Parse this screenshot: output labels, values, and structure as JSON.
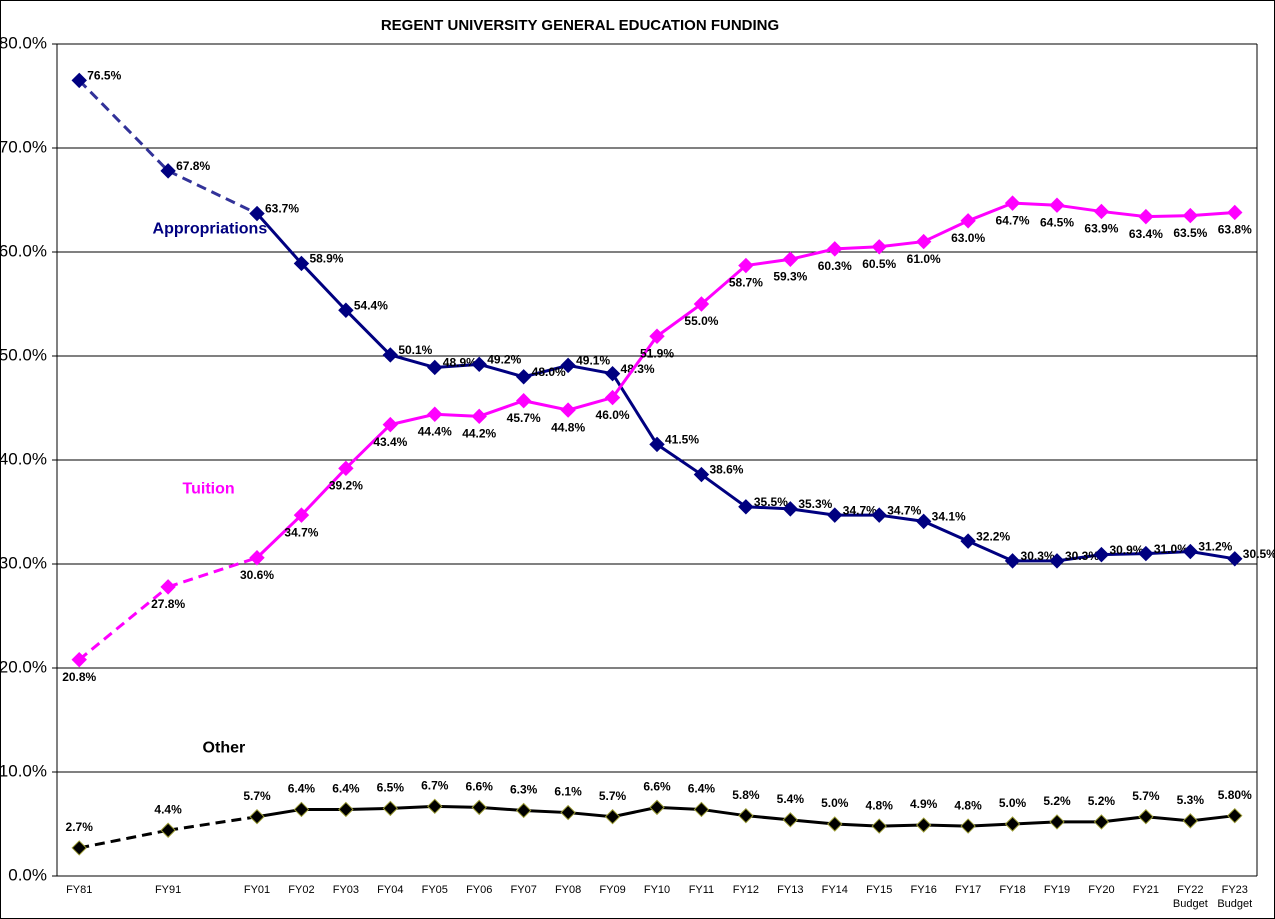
{
  "chart_data": {
    "type": "line",
    "title": "REGENT UNIVERSITY GENERAL EDUCATION FUNDING",
    "categories": [
      "FY81",
      null,
      "FY91",
      null,
      "FY01",
      "FY02",
      "FY03",
      "FY04",
      "FY05",
      "FY06",
      "FY07",
      "FY08",
      "FY09",
      "FY10",
      "FY11",
      "FY12",
      "FY13",
      "FY14",
      "FY15",
      "FY16",
      "FY17",
      "FY18",
      "FY19",
      "FY20",
      "FY21",
      "FY22",
      "FY23"
    ],
    "x_sublabels": [
      null,
      null,
      null,
      null,
      null,
      null,
      null,
      null,
      null,
      null,
      null,
      null,
      null,
      null,
      null,
      null,
      null,
      null,
      null,
      null,
      null,
      null,
      null,
      null,
      null,
      "Budget",
      "Budget"
    ],
    "ylim": [
      0,
      80
    ],
    "yticks": [
      {
        "value": 0,
        "label": "0.0%"
      },
      {
        "value": 10,
        "label": "10.0%"
      },
      {
        "value": 20,
        "label": "20.0%"
      },
      {
        "value": 30,
        "label": "30.0%"
      },
      {
        "value": 40,
        "label": "40.0%"
      },
      {
        "value": 50,
        "label": "50.0%"
      },
      {
        "value": 60,
        "label": "60.0%"
      },
      {
        "value": 70,
        "label": "70.0%"
      },
      {
        "value": 80,
        "label": "80.0%"
      }
    ],
    "grid": true,
    "series": [
      {
        "name": "Appropriations",
        "color": "#000080",
        "values": [
          76.5,
          null,
          67.8,
          null,
          63.7,
          58.9,
          54.4,
          50.1,
          48.9,
          49.2,
          48.0,
          49.1,
          48.3,
          41.5,
          38.6,
          35.5,
          35.3,
          34.7,
          34.7,
          34.1,
          32.2,
          30.3,
          30.3,
          30.9,
          31.0,
          31.2,
          30.5
        ],
        "value_labels": [
          "76.5%",
          null,
          "67.8%",
          null,
          "63.7%",
          "58.9%",
          "54.4%",
          "50.1%",
          "48.9%",
          "49.2%",
          "48.0%",
          "49.1%",
          "48.3%",
          "41.5%",
          "38.6%",
          "35.5%",
          "35.3%",
          "34.7%",
          "34.7%",
          "34.1%",
          "32.2%",
          "30.3%",
          "30.3%",
          "30.9%",
          "31.0%",
          "31.2%",
          "30.5%"
        ]
      },
      {
        "name": "Tuition",
        "color": "#ff00ff",
        "values": [
          20.8,
          null,
          27.8,
          null,
          30.6,
          34.7,
          39.2,
          43.4,
          44.4,
          44.2,
          45.7,
          44.8,
          46.0,
          51.9,
          55.0,
          58.7,
          59.3,
          60.3,
          60.5,
          61.0,
          63.0,
          64.7,
          64.5,
          63.9,
          63.4,
          63.5,
          63.8
        ],
        "value_labels": [
          "20.8%",
          null,
          "27.8%",
          null,
          "30.6%",
          "34.7%",
          "39.2%",
          "43.4%",
          "44.4%",
          "44.2%",
          "45.7%",
          "44.8%",
          "46.0%",
          "51.9%",
          "55.0%",
          "58.7%",
          "59.3%",
          "60.3%",
          "60.5%",
          "61.0%",
          "63.0%",
          "64.7%",
          "64.5%",
          "63.9%",
          "63.4%",
          "63.5%",
          "63.8%"
        ]
      },
      {
        "name": "Other",
        "color": "#000000",
        "values": [
          2.7,
          null,
          4.4,
          null,
          5.7,
          6.4,
          6.4,
          6.5,
          6.7,
          6.6,
          6.3,
          6.1,
          5.7,
          6.6,
          6.4,
          5.8,
          5.4,
          5.0,
          4.8,
          4.9,
          4.8,
          5.0,
          5.2,
          5.2,
          5.7,
          5.3,
          5.8
        ],
        "value_labels": [
          "2.7%",
          null,
          "4.4%",
          null,
          "5.7%",
          "6.4%",
          "6.4%",
          "6.5%",
          "6.7%",
          "6.6%",
          "6.3%",
          "6.1%",
          "5.7%",
          "6.6%",
          "6.4%",
          "5.8%",
          "5.4%",
          "5.0%",
          "4.8%",
          "4.9%",
          "4.8%",
          "5.0%",
          "5.2%",
          "5.2%",
          "5.7%",
          "5.3%",
          "5.80%"
        ]
      }
    ]
  }
}
